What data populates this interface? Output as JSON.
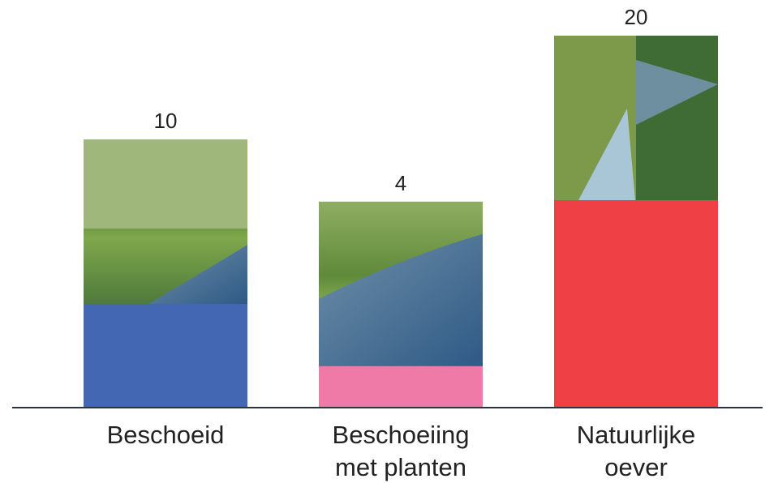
{
  "chart_data": {
    "type": "bar",
    "categories": [
      "Beschoeid",
      "Beschoeiing met planten",
      "Natuurlijke oever"
    ],
    "values": [
      10,
      4,
      20
    ],
    "colors": [
      "#4467b4",
      "#f07aa7",
      "#ee4045"
    ]
  }
}
